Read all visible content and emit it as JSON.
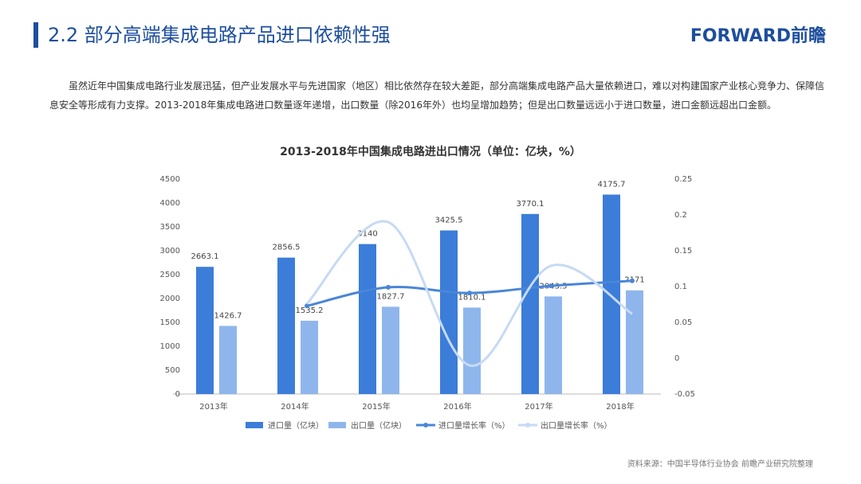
{
  "header": {
    "title": "2.2 部分高端集成电路产品进口依赖性强",
    "logo": "FORWARD前瞻"
  },
  "paragraph": "虽然近年中国集成电路行业发展迅猛，但产业发展水平与先进国家（地区）相比依然存在较大差距，部分高端集成电路产品大量依赖进口，难以对构建国家产业核心竞争力、保障信息安全等形成有力支撑。2013-2018年集成电路进口数量逐年递增，出口数量（除2016年外）也均呈增加趋势；但是出口数量远远小于进口数量，进口金额远超出口金额。",
  "chart_data": {
    "type": "bar",
    "title": "2013-2018年中国集成电路进出口情况（单位：亿块，%）",
    "categories": [
      "2013年",
      "2014年",
      "2015年",
      "2016年",
      "2017年",
      "2018年"
    ],
    "series": [
      {
        "name": "进口量（亿块）",
        "type": "bar",
        "color": "#3b7dd8",
        "values": [
          2663.1,
          2856.5,
          3140,
          3425.5,
          3770.1,
          4175.7
        ]
      },
      {
        "name": "出口量（亿块）",
        "type": "bar",
        "color": "#8fb6ec",
        "values": [
          1426.7,
          1535.2,
          1827.7,
          1810.1,
          2043.5,
          2171
        ]
      },
      {
        "name": "进口量增长率（%）",
        "type": "line",
        "axis": "y2",
        "color": "#4a86d8",
        "values": [
          null,
          0.073,
          0.099,
          0.091,
          0.101,
          0.108
        ]
      },
      {
        "name": "出口量增长率（%）",
        "type": "line",
        "axis": "y2",
        "color": "#c6daf3",
        "values": [
          null,
          0.076,
          0.19,
          -0.01,
          0.129,
          0.062
        ]
      }
    ],
    "ylim": [
      0,
      4500
    ],
    "yticks": [
      0,
      500,
      1000,
      1500,
      2000,
      2500,
      3000,
      3500,
      4000,
      4500
    ],
    "y2lim": [
      -0.05,
      0.25
    ],
    "y2ticks": [
      -0.05,
      0,
      0.05,
      0.1,
      0.15,
      0.2,
      0.25
    ]
  },
  "source": "资料来源：中国半导体行业协会 前瞻产业研究院整理"
}
